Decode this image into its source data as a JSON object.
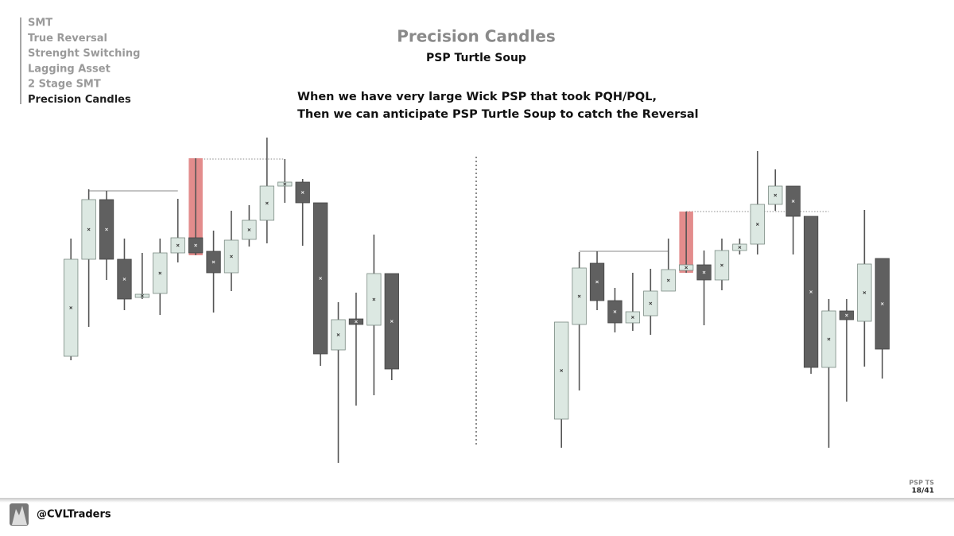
{
  "menu": [
    "SMT",
    "True Reversal",
    "Strenght Switching",
    "Lagging Asset",
    "2 Stage SMT",
    "Precision Candles"
  ],
  "active_menu": 5,
  "title": "Precision Candles",
  "subtitle": "PSP Turtle Soup",
  "description": [
    "When we have very large Wick PSP that took PQH/PQL,",
    "Then we can anticipate PSP Turtle Soup to catch the Reversal"
  ],
  "footer": {
    "handle": "@CVLTraders",
    "section": "PSP TS",
    "page": "18/41"
  },
  "chart_data": [
    {
      "type": "candlestick",
      "ylim": [
        0,
        450
      ],
      "up_color": "#dce8e2",
      "down_color": "#606060",
      "highlight_color": "#e38c8c",
      "candles": [
        {
          "open": 152,
          "high": 300,
          "low": 147,
          "close": 274
        },
        {
          "open": 274,
          "high": 362,
          "low": 189,
          "close": 349
        },
        {
          "open": 349,
          "high": 360,
          "low": 248,
          "close": 274
        },
        {
          "open": 274,
          "high": 300,
          "low": 210,
          "close": 224
        },
        {
          "open": 226,
          "high": 282,
          "low": 224,
          "close": 230
        },
        {
          "open": 231,
          "high": 300,
          "low": 204,
          "close": 282
        },
        {
          "open": 282,
          "high": 350,
          "low": 270,
          "close": 301
        },
        {
          "open": 301,
          "high": 401,
          "low": 279,
          "close": 282,
          "highlight": true
        },
        {
          "open": 284,
          "high": 310,
          "low": 207,
          "close": 257
        },
        {
          "open": 257,
          "high": 335,
          "low": 234,
          "close": 298
        },
        {
          "open": 299,
          "high": 342,
          "low": 290,
          "close": 323
        },
        {
          "open": 323,
          "high": 427,
          "low": 294,
          "close": 366
        },
        {
          "open": 366,
          "high": 400,
          "low": 345,
          "close": 371
        },
        {
          "open": 371,
          "high": 375,
          "low": 291,
          "close": 345
        },
        {
          "open": 345,
          "high": 345,
          "low": 140,
          "close": 155
        },
        {
          "open": 160,
          "high": 220,
          "low": 18,
          "close": 198
        },
        {
          "open": 199,
          "high": 232,
          "low": 90,
          "close": 192
        },
        {
          "open": 191,
          "high": 305,
          "low": 103,
          "close": 256
        },
        {
          "open": 256,
          "high": 256,
          "low": 122,
          "close": 136
        }
      ],
      "levels": [
        {
          "value": 360,
          "style": "solid",
          "start": 1,
          "end": 6
        },
        {
          "value": 400,
          "style": "dotted",
          "start": 7,
          "end": 12
        }
      ]
    },
    {
      "type": "candlestick",
      "ylim": [
        0,
        450
      ],
      "up_color": "#dce8e2",
      "down_color": "#606060",
      "highlight_color": "#e38c8c",
      "candles": [
        {
          "open": 73,
          "high": 195,
          "low": 37,
          "close": 195
        },
        {
          "open": 192,
          "high": 283,
          "low": 109,
          "close": 263
        },
        {
          "open": 269,
          "high": 284,
          "low": 210,
          "close": 222
        },
        {
          "open": 222,
          "high": 238,
          "low": 182,
          "close": 194
        },
        {
          "open": 194,
          "high": 257,
          "low": 184,
          "close": 208
        },
        {
          "open": 203,
          "high": 262,
          "low": 179,
          "close": 234
        },
        {
          "open": 234,
          "high": 300,
          "low": 234,
          "close": 261
        },
        {
          "open": 260,
          "high": 334,
          "low": 257,
          "close": 267,
          "highlight": true
        },
        {
          "open": 267,
          "high": 285,
          "low": 191,
          "close": 248
        },
        {
          "open": 248,
          "high": 300,
          "low": 235,
          "close": 285
        },
        {
          "open": 285,
          "high": 300,
          "low": 280,
          "close": 293
        },
        {
          "open": 293,
          "high": 410,
          "low": 280,
          "close": 343
        },
        {
          "open": 343,
          "high": 387,
          "low": 335,
          "close": 366
        },
        {
          "open": 366,
          "high": 366,
          "low": 280,
          "close": 328
        },
        {
          "open": 328,
          "high": 328,
          "low": 130,
          "close": 138
        },
        {
          "open": 138,
          "high": 224,
          "low": 37,
          "close": 209
        },
        {
          "open": 209,
          "high": 224,
          "low": 95,
          "close": 198
        },
        {
          "open": 196,
          "high": 336,
          "low": 139,
          "close": 268
        },
        {
          "open": 275,
          "high": 275,
          "low": 124,
          "close": 161
        }
      ],
      "levels": [
        {
          "value": 284,
          "style": "solid",
          "start": 1,
          "end": 6
        },
        {
          "value": 334,
          "style": "dotted",
          "start": 7,
          "end": 15
        }
      ]
    }
  ]
}
